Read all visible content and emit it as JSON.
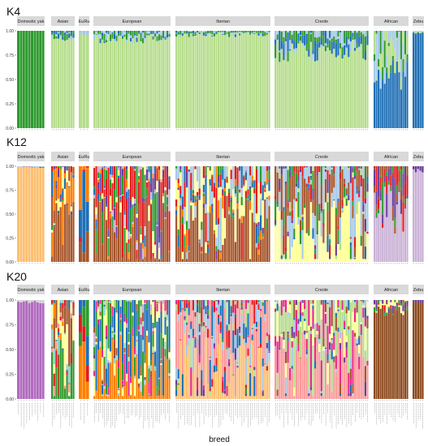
{
  "chart_data": {
    "type": "bar",
    "subtype": "stacked-100-percent-admixture",
    "xlabel": "breed",
    "ylabel": "",
    "ylim": [
      0,
      1
    ],
    "yticks": [
      "0.00",
      "0.25",
      "0.50",
      "0.75",
      "1.00"
    ],
    "grid": false,
    "legend": "none",
    "facets": [
      "Domestic yak",
      "Asian",
      "EuRu",
      "European",
      "Iberian",
      "Creole",
      "African",
      "Zebu"
    ],
    "panels": [
      {
        "name": "K4",
        "groups": [
          {
            "facet": "Domestic yak",
            "dominant": "#2e9a2e",
            "minor": [
              "#1f6fb5"
            ],
            "minor_level": 0.0,
            "n": 10
          },
          {
            "facet": "Asian",
            "dominant": "#b5dd8b",
            "minor": [
              "#1f6fb5",
              "#a6c8e6",
              "#2e9a2e"
            ],
            "minor_level": 0.08,
            "n": 11
          },
          {
            "facet": "EuRu",
            "dominant": "#b5dd8b",
            "minor": [
              "#a6c8e6"
            ],
            "minor_level": 0.03,
            "n": 3
          },
          {
            "facet": "European",
            "dominant": "#b5dd8b",
            "minor": [
              "#a6c8e6",
              "#1f6fb5",
              "#2e9a2e"
            ],
            "minor_level": 0.08,
            "n": 38
          },
          {
            "facet": "Iberian",
            "dominant": "#b5dd8b",
            "minor": [
              "#a6c8e6",
              "#1f6fb5",
              "#2e9a2e"
            ],
            "minor_level": 0.04,
            "n": 45
          },
          {
            "facet": "Creole",
            "dominant": "#b5dd8b",
            "minor": [
              "#1f6fb5",
              "#a6c8e6",
              "#2e9a2e"
            ],
            "minor_level": 0.2,
            "n": 45
          },
          {
            "facet": "African",
            "dominant": "#1f6fb5",
            "minor": [
              "#b5dd8b",
              "#2e9a2e",
              "#a6c8e6"
            ],
            "minor_level": 0.4,
            "n": 17
          },
          {
            "facet": "Zebu",
            "dominant": "#1f6fb5",
            "minor": [
              "#b5dd8b"
            ],
            "minor_level": 0.03,
            "n": 5
          }
        ]
      },
      {
        "name": "K12",
        "groups": [
          {
            "facet": "Domestic yak",
            "dominant": "#fdbf6f",
            "minor": [
              "#e31a1c",
              "#a6c8e6"
            ],
            "minor_level": 0.01,
            "n": 10
          },
          {
            "facet": "Asian",
            "dominant": "#a6562b",
            "minor": [
              "#ff7f00",
              "#b15928",
              "#ffff99",
              "#1f6fb5",
              "#e31a1c",
              "#2e9a2e",
              "#6a3d9a"
            ],
            "minor_level": 0.7,
            "n": 11
          },
          {
            "facet": "EuRu",
            "dominant": "#a6562b",
            "minor": [
              "#ff7f00",
              "#e31a1c",
              "#1f6fb5"
            ],
            "minor_level": 0.6,
            "n": 3
          },
          {
            "facet": "European",
            "dominant": "#a6562b",
            "minor": [
              "#e31a1c",
              "#2e9a2e",
              "#6a3d9a",
              "#ffff99",
              "#1f6fb5",
              "#ff7f00",
              "#cab2d6"
            ],
            "minor_level": 0.75,
            "n": 38
          },
          {
            "facet": "Iberian",
            "dominant": "#a6562b",
            "minor": [
              "#ffff99",
              "#a6c8e6",
              "#e31a1c",
              "#1f6fb5",
              "#ff7f00",
              "#6a3d9a",
              "#2e9a2e"
            ],
            "minor_level": 0.75,
            "n": 45
          },
          {
            "facet": "Creole",
            "dominant": "#ffff99",
            "minor": [
              "#a6562b",
              "#a6c8e6",
              "#2e9a2e",
              "#e31a1c",
              "#b5dd8b",
              "#1f6fb5",
              "#6a3d9a"
            ],
            "minor_level": 0.75,
            "n": 45
          },
          {
            "facet": "African",
            "dominant": "#cab2d6",
            "minor": [
              "#6a3d9a",
              "#e31a1c",
              "#2e9a2e",
              "#a6562b"
            ],
            "minor_level": 0.45,
            "n": 17
          },
          {
            "facet": "Zebu",
            "dominant": "#cab2d6",
            "minor": [
              "#6a3d9a"
            ],
            "minor_level": 0.05,
            "n": 5
          }
        ]
      },
      {
        "name": "K20",
        "groups": [
          {
            "facet": "Domestic yak",
            "dominant": "#b06ac0",
            "minor": [
              "#d0d0d0"
            ],
            "minor_level": 0.02,
            "n": 10
          },
          {
            "facet": "Asian",
            "dominant": "#2e9a2e",
            "minor": [
              "#ffff99",
              "#a6562b",
              "#e31a1c",
              "#8dd3c7",
              "#ff7f00",
              "#1f6fb5",
              "#fb9a99"
            ],
            "minor_level": 0.8,
            "n": 11
          },
          {
            "facet": "EuRu",
            "dominant": "#ff7f00",
            "minor": [
              "#e31a1c",
              "#1f6fb5",
              "#2e9a2e"
            ],
            "minor_level": 0.6,
            "n": 3
          },
          {
            "facet": "European",
            "dominant": "#ff7f00",
            "minor": [
              "#1f6fb5",
              "#2e9a2e",
              "#ffff99",
              "#e7298a",
              "#a6562b",
              "#b5dd8b",
              "#cab2d6",
              "#6a3d9a",
              "#8dd3c7"
            ],
            "minor_level": 0.85,
            "n": 38
          },
          {
            "facet": "Iberian",
            "dominant": "#fdbf6f",
            "minor": [
              "#fb9a99",
              "#1f6fb5",
              "#a6c8e6",
              "#e31a1c",
              "#b5dd8b",
              "#6a3d9a",
              "#2e9a2e",
              "#e7298a"
            ],
            "minor_level": 0.8,
            "n": 45
          },
          {
            "facet": "Creole",
            "dominant": "#fb9a99",
            "minor": [
              "#b5dd8b",
              "#e7298a",
              "#ffff99",
              "#a6562b",
              "#1f6fb5",
              "#6a3d9a",
              "#a6c8e6"
            ],
            "minor_level": 0.8,
            "n": 45
          },
          {
            "facet": "African",
            "dominant": "#8c4a1e",
            "minor": [
              "#6a3d9a",
              "#2e9a2e",
              "#e31a1c",
              "#ffff99"
            ],
            "minor_level": 0.1,
            "n": 17
          },
          {
            "facet": "Zebu",
            "dominant": "#8c4a1e",
            "minor": [
              "#6a3d9a"
            ],
            "minor_level": 0.03,
            "n": 5
          }
        ]
      }
    ]
  }
}
